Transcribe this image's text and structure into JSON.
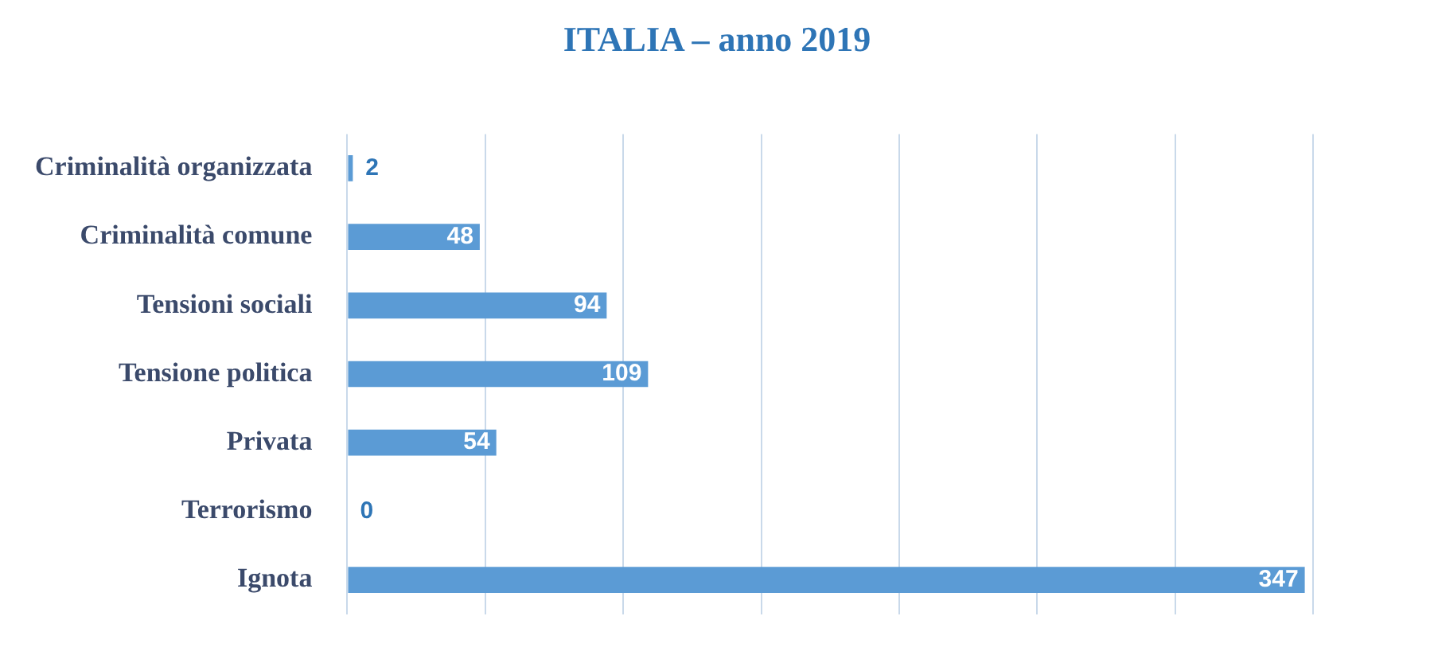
{
  "chart_data": {
    "type": "bar",
    "orientation": "horizontal",
    "title": "ITALIA – anno 2019",
    "categories": [
      "Criminalità organizzata",
      "Criminalità comune",
      "Tensioni sociali",
      "Tensione politica",
      "Privata",
      "Terrorismo",
      "Ignota"
    ],
    "values": [
      2,
      48,
      94,
      109,
      54,
      0,
      347
    ],
    "color": "#5b9bd5",
    "data_labels": true,
    "xlim": [
      0,
      350
    ],
    "xticks": [
      {
        "value": 0,
        "label": null
      },
      {
        "value": 50,
        "label": null
      },
      {
        "value": 100,
        "label": null
      },
      {
        "value": 150,
        "label": null
      },
      {
        "value": 200,
        "label": null
      },
      {
        "value": 250,
        "label": null
      },
      {
        "value": 300,
        "label": null
      },
      {
        "value": 350,
        "label": null
      }
    ],
    "grid": "x",
    "tick_labels": "y",
    "legend": false
  }
}
